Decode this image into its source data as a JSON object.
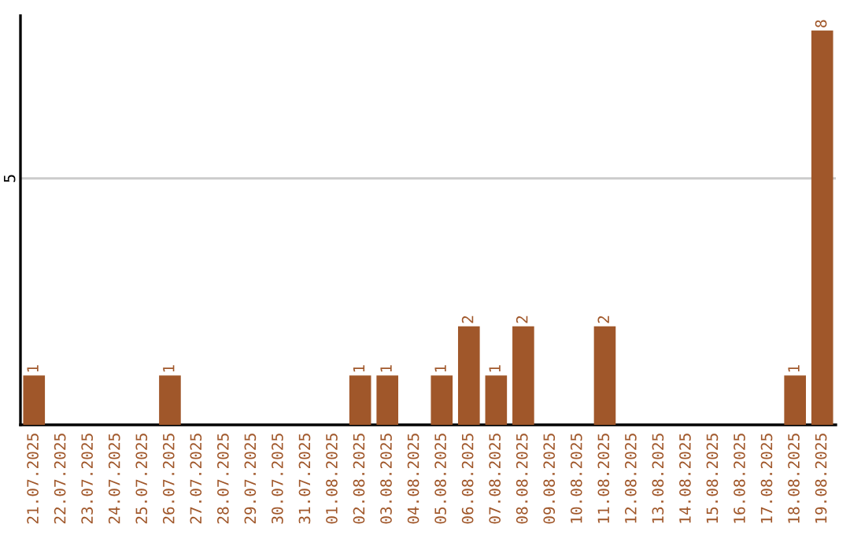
{
  "chart_data": {
    "type": "bar",
    "categories": [
      "21.07.2025",
      "22.07.2025",
      "23.07.2025",
      "24.07.2025",
      "25.07.2025",
      "26.07.2025",
      "27.07.2025",
      "28.07.2025",
      "29.07.2025",
      "30.07.2025",
      "31.07.2025",
      "01.08.2025",
      "02.08.2025",
      "03.08.2025",
      "04.08.2025",
      "05.08.2025",
      "06.08.2025",
      "07.08.2025",
      "08.08.2025",
      "09.08.2025",
      "10.08.2025",
      "11.08.2025",
      "12.08.2025",
      "13.08.2025",
      "14.08.2025",
      "15.08.2025",
      "16.08.2025",
      "17.08.2025",
      "18.08.2025",
      "19.08.2025"
    ],
    "values": [
      1,
      0,
      0,
      0,
      0,
      1,
      0,
      0,
      0,
      0,
      0,
      0,
      1,
      1,
      0,
      1,
      2,
      1,
      2,
      0,
      0,
      2,
      0,
      0,
      0,
      0,
      0,
      0,
      1,
      8
    ],
    "value_labels": [
      "1",
      null,
      null,
      null,
      null,
      "1",
      null,
      null,
      null,
      null,
      null,
      null,
      "1",
      "1",
      null,
      "1",
      "2",
      "1",
      "2",
      null,
      null,
      "2",
      null,
      null,
      null,
      null,
      null,
      null,
      "1",
      "8"
    ],
    "color": "#a0572a",
    "ylim": [
      0,
      8.3
    ],
    "yticks": [
      5
    ],
    "grid": "y"
  }
}
